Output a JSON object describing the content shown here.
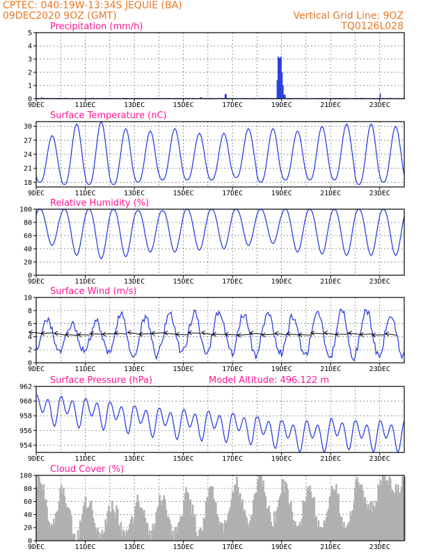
{
  "header": {
    "line1_left": "CPTEC:   040:19W-13:34S   JEQUIE (BA)",
    "line2_left": "09DEC2020 9OZ (GMT)",
    "line1_right": "Vertical Grid Line: 9OZ",
    "line2_right": "TQ0126L028"
  },
  "colors": {
    "header": "#e87722",
    "panel_title": "#ff1493",
    "series": "#2b3fe0",
    "cloud": "#b0b0b0",
    "arrow": "#000000"
  },
  "chart_data": [
    {
      "id": "precip",
      "type": "bar",
      "title": "Precipitation (mm/h)",
      "ylim": [
        0,
        5
      ],
      "yticks": [
        "0",
        "1",
        "2",
        "3",
        "4",
        "5"
      ],
      "x_ticks": [
        "9DEC",
        "11DEC",
        "13DEC",
        "15DEC",
        "17DEC",
        "19DEC",
        "21DEC",
        "23DEC"
      ],
      "x_range_days": [
        9,
        24
      ],
      "points": [
        [
          9.2,
          0.1
        ],
        [
          12.9,
          0.05
        ],
        [
          15.7,
          0.1
        ],
        [
          16.7,
          0.35
        ],
        [
          18.8,
          1.4
        ],
        [
          18.85,
          3.2
        ],
        [
          18.9,
          3.1
        ],
        [
          18.95,
          3.2
        ],
        [
          19.0,
          2.0
        ],
        [
          19.05,
          1.0
        ],
        [
          19.1,
          0.3
        ],
        [
          23.0,
          0.4
        ]
      ]
    },
    {
      "id": "temp",
      "type": "line",
      "title": "Surface Temperature (nC)",
      "ylim": [
        17,
        31
      ],
      "yticks": [
        "18",
        "21",
        "24",
        "27",
        "30"
      ],
      "x_ticks": [
        "9DEC",
        "11DEC",
        "13DEC",
        "15DEC",
        "17DEC",
        "19DEC",
        "21DEC",
        "23DEC"
      ],
      "x_range_days": [
        9,
        24
      ],
      "daily_max": [
        28.0,
        30.5,
        31.0,
        29.5,
        29.0,
        29.5,
        28.5,
        28.5,
        29.5,
        29.5,
        29.0,
        30.0,
        30.5,
        30.5,
        30.0
      ],
      "daily_min": [
        18.0,
        17.5,
        17.5,
        17.5,
        18.0,
        18.5,
        18.5,
        18.5,
        19.0,
        18.0,
        18.5,
        18.5,
        18.5,
        17.5,
        18.0
      ],
      "peak_phase": 0.65
    },
    {
      "id": "rh",
      "type": "line",
      "title": "Relative Humidity (%)",
      "ylim": [
        0,
        100
      ],
      "yticks": [
        "0",
        "20",
        "40",
        "60",
        "80",
        "100"
      ],
      "x_ticks": [
        "9DEC",
        "11DEC",
        "13DEC",
        "15DEC",
        "17DEC",
        "19DEC",
        "21DEC",
        "23DEC"
      ],
      "x_range_days": [
        9,
        24
      ],
      "daily_max": [
        100,
        100,
        100,
        100,
        98,
        98,
        100,
        100,
        100,
        100,
        100,
        100,
        100,
        100,
        100
      ],
      "daily_min": [
        45,
        30,
        25,
        28,
        35,
        35,
        38,
        40,
        45,
        48,
        35,
        32,
        30,
        30,
        30
      ],
      "min_phase": 0.65
    },
    {
      "id": "wind",
      "type": "line",
      "title": "Surface Wind (m/s)",
      "ylim": [
        0,
        10
      ],
      "yticks": [
        "0",
        "2",
        "4",
        "6",
        "8",
        "10"
      ],
      "x_ticks": [
        "9DEC",
        "11DEC",
        "13DEC",
        "15DEC",
        "17DEC",
        "19DEC",
        "21DEC",
        "23DEC"
      ],
      "x_range_days": [
        9,
        24
      ],
      "daily_max": [
        6.5,
        6.0,
        6.5,
        7.5,
        7.0,
        7.5,
        7.5,
        8.0,
        7.5,
        7.5,
        7.0,
        8.0,
        8.0,
        8.0,
        7.5
      ],
      "daily_min": [
        2.0,
        2.0,
        1.5,
        1.0,
        1.0,
        1.5,
        1.5,
        1.5,
        1.0,
        1.5,
        1.0,
        1.0,
        0.5,
        1.0,
        1.0
      ],
      "max_phase": 0.45,
      "arrow_direction_deg": 100
    },
    {
      "id": "pressure",
      "type": "line",
      "title": "Surface Pressure (hPa)",
      "annotation": "Model Altitude: 496.122 m",
      "ylim": [
        953,
        962
      ],
      "yticks": [
        "954",
        "956",
        "958",
        "960",
        "962"
      ],
      "x_ticks": [
        "9DEC",
        "11DEC",
        "13DEC",
        "15DEC",
        "17DEC",
        "19DEC",
        "21DEC",
        "23DEC"
      ],
      "x_range_days": [
        9,
        24
      ],
      "daily_mean": [
        959.0,
        958.8,
        958.5,
        958.0,
        957.5,
        957.2,
        957.0,
        956.8,
        956.5,
        956.0,
        955.5,
        955.5,
        955.8,
        955.5,
        955.5
      ],
      "amplitude": 2.5
    },
    {
      "id": "cloud",
      "type": "bar",
      "title": "Cloud Cover (%)",
      "ylim": [
        0,
        100
      ],
      "yticks": [
        "0",
        "20",
        "40",
        "60",
        "80",
        "100"
      ],
      "x_ticks": [
        "9DEC",
        "11DEC",
        "13DEC",
        "15DEC",
        "17DEC",
        "19DEC",
        "21DEC",
        "23DEC"
      ],
      "x_range_days": [
        9,
        24
      ],
      "daily_peak": [
        95,
        70,
        60,
        50,
        65,
        60,
        70,
        75,
        90,
        95,
        85,
        75,
        80,
        90,
        95
      ],
      "daily_low": [
        20,
        5,
        10,
        5,
        10,
        10,
        15,
        20,
        25,
        30,
        20,
        15,
        20,
        50,
        80
      ]
    }
  ]
}
